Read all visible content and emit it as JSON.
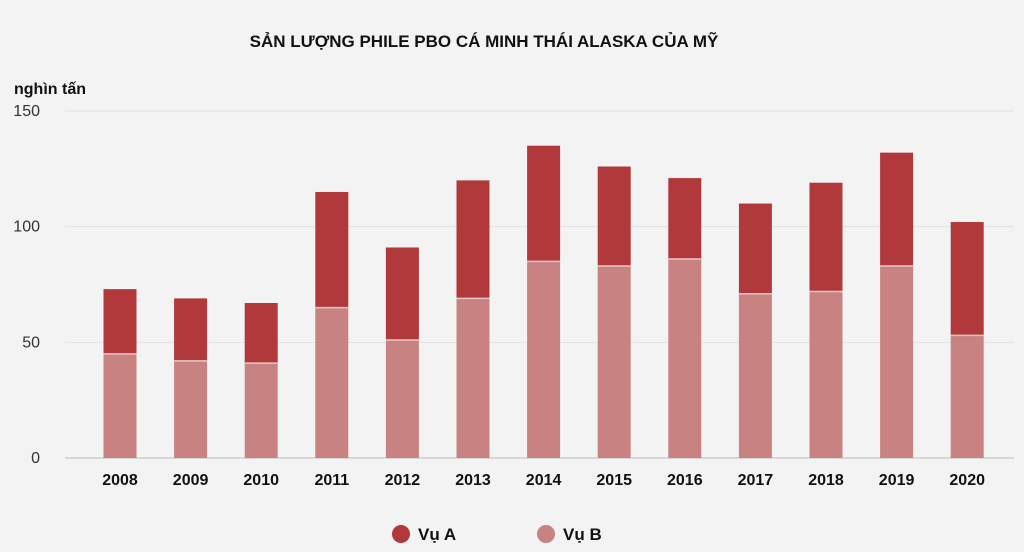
{
  "chart_data": {
    "type": "bar",
    "stacked": true,
    "title": "SẢN LƯỢNG PHILE PBO CÁ MINH THÁI ALASKA CỦA MỸ",
    "ylabel": "nghìn tấn",
    "ylim": [
      0,
      150
    ],
    "yticks": [
      0,
      50,
      100,
      150
    ],
    "grid": true,
    "legend_position": "bottom",
    "categories": [
      "2008",
      "2009",
      "2010",
      "2011",
      "2012",
      "2013",
      "2014",
      "2015",
      "2016",
      "2017",
      "2018",
      "2019",
      "2020"
    ],
    "series": [
      {
        "name": "Vụ B",
        "color": "#c98282",
        "values": [
          45,
          42,
          41,
          65,
          51,
          69,
          85,
          83,
          86,
          71,
          72,
          83,
          53
        ]
      },
      {
        "name": "Vụ A",
        "color": "#b1383b",
        "values": [
          28,
          27,
          26,
          50,
          40,
          51,
          50,
          43,
          35,
          39,
          47,
          49,
          49
        ]
      }
    ],
    "legend": [
      "Vụ A",
      "Vụ B"
    ]
  }
}
